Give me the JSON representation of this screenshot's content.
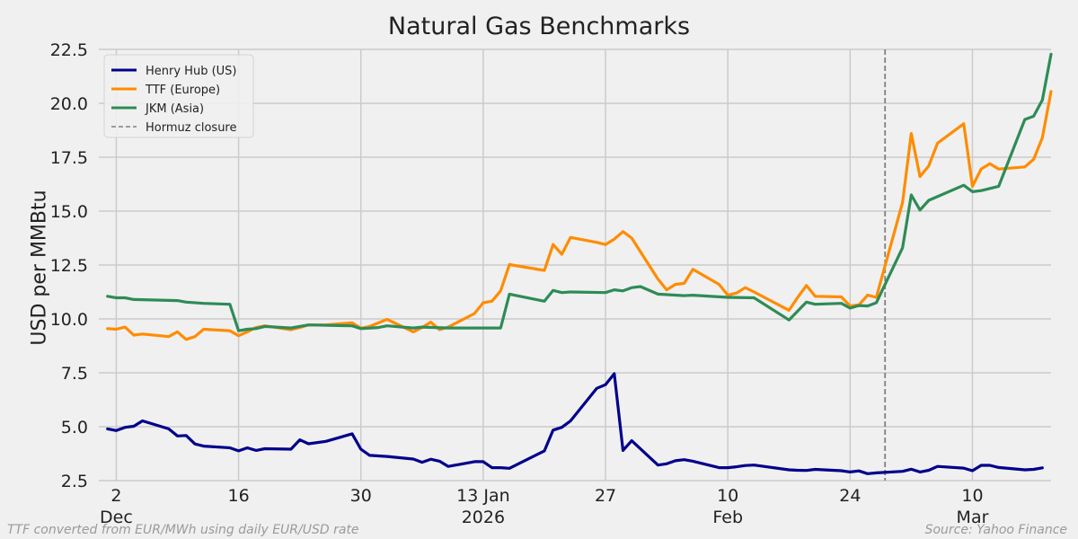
{
  "chart_data": {
    "type": "line",
    "title": "Natural Gas Benchmarks",
    "ylabel": "USD per MMBtu",
    "xlabel": "",
    "ylim": [
      2.5,
      22.5
    ],
    "y_ticks": [
      "2.5",
      "5.0",
      "7.5",
      "10.0",
      "12.5",
      "15.0",
      "17.5",
      "20.0",
      "22.5"
    ],
    "x_range": [
      "2025-11-30",
      "2026-03-19"
    ],
    "x_ticks": [
      {
        "date": "2025-12-02",
        "label": "2",
        "sublabel": "Dec"
      },
      {
        "date": "2025-12-16",
        "label": "16",
        "sublabel": ""
      },
      {
        "date": "2025-12-30",
        "label": "30",
        "sublabel": ""
      },
      {
        "date": "2026-01-13",
        "label": "13 Jan",
        "sublabel": "2026"
      },
      {
        "date": "2026-01-27",
        "label": "27",
        "sublabel": ""
      },
      {
        "date": "2026-02-10",
        "label": "10",
        "sublabel": "Feb"
      },
      {
        "date": "2026-02-24",
        "label": "24",
        "sublabel": ""
      },
      {
        "date": "2026-03-10",
        "label": "10",
        "sublabel": "Mar"
      }
    ],
    "grid": true,
    "legend_position": "top-left",
    "marker": {
      "date": "2026-02-28",
      "label": "Hormuz closure",
      "color": "#808080",
      "style": "dashed"
    },
    "series": [
      {
        "name": "Henry Hub (US)",
        "color": "#00008b",
        "points": [
          [
            "2025-12-01",
            4.9
          ],
          [
            "2025-12-02",
            4.82
          ],
          [
            "2025-12-03",
            4.97
          ],
          [
            "2025-12-04",
            5.02
          ],
          [
            "2025-12-05",
            5.27
          ],
          [
            "2025-12-08",
            4.9
          ],
          [
            "2025-12-09",
            4.57
          ],
          [
            "2025-12-10",
            4.59
          ],
          [
            "2025-12-11",
            4.2
          ],
          [
            "2025-12-12",
            4.1
          ],
          [
            "2025-12-15",
            4.02
          ],
          [
            "2025-12-16",
            3.88
          ],
          [
            "2025-12-17",
            4.02
          ],
          [
            "2025-12-18",
            3.9
          ],
          [
            "2025-12-19",
            3.98
          ],
          [
            "2025-12-22",
            3.96
          ],
          [
            "2025-12-23",
            4.39
          ],
          [
            "2025-12-24",
            4.21
          ],
          [
            "2025-12-26",
            4.32
          ],
          [
            "2025-12-29",
            4.67
          ],
          [
            "2025-12-30",
            3.96
          ],
          [
            "2025-12-31",
            3.67
          ],
          [
            "2026-01-02",
            3.62
          ],
          [
            "2026-01-05",
            3.5
          ],
          [
            "2026-01-06",
            3.35
          ],
          [
            "2026-01-07",
            3.49
          ],
          [
            "2026-01-08",
            3.4
          ],
          [
            "2026-01-09",
            3.16
          ],
          [
            "2026-01-12",
            3.38
          ],
          [
            "2026-01-13",
            3.38
          ],
          [
            "2026-01-14",
            3.1
          ],
          [
            "2026-01-15",
            3.1
          ],
          [
            "2026-01-16",
            3.07
          ],
          [
            "2026-01-20",
            3.88
          ],
          [
            "2026-01-21",
            4.84
          ],
          [
            "2026-01-22",
            4.97
          ],
          [
            "2026-01-23",
            5.27
          ],
          [
            "2026-01-26",
            6.78
          ],
          [
            "2026-01-27",
            6.95
          ],
          [
            "2026-01-28",
            7.46
          ],
          [
            "2026-01-29",
            3.9
          ],
          [
            "2026-01-30",
            4.35
          ],
          [
            "2026-02-02",
            3.22
          ],
          [
            "2026-02-03",
            3.28
          ],
          [
            "2026-02-04",
            3.42
          ],
          [
            "2026-02-05",
            3.47
          ],
          [
            "2026-02-06",
            3.4
          ],
          [
            "2026-02-09",
            3.1
          ],
          [
            "2026-02-10",
            3.1
          ],
          [
            "2026-02-11",
            3.14
          ],
          [
            "2026-02-12",
            3.2
          ],
          [
            "2026-02-13",
            3.22
          ],
          [
            "2026-02-17",
            3.0
          ],
          [
            "2026-02-18",
            2.98
          ],
          [
            "2026-02-19",
            2.97
          ],
          [
            "2026-02-20",
            3.02
          ],
          [
            "2026-02-23",
            2.96
          ],
          [
            "2026-02-24",
            2.9
          ],
          [
            "2026-02-25",
            2.95
          ],
          [
            "2026-02-26",
            2.82
          ],
          [
            "2026-02-27",
            2.86
          ],
          [
            "2026-03-02",
            2.93
          ],
          [
            "2026-03-03",
            3.03
          ],
          [
            "2026-03-04",
            2.9
          ],
          [
            "2026-03-05",
            2.98
          ],
          [
            "2026-03-06",
            3.16
          ],
          [
            "2026-03-09",
            3.08
          ],
          [
            "2026-03-10",
            2.96
          ],
          [
            "2026-03-11",
            3.21
          ],
          [
            "2026-03-12",
            3.21
          ],
          [
            "2026-03-13",
            3.11
          ],
          [
            "2026-03-16",
            3.0
          ],
          [
            "2026-03-17",
            3.02
          ],
          [
            "2026-03-18",
            3.09
          ]
        ]
      },
      {
        "name": "TTF (Europe)",
        "color": "#ff8c00",
        "points": [
          [
            "2025-12-01",
            9.55
          ],
          [
            "2025-12-02",
            9.52
          ],
          [
            "2025-12-03",
            9.62
          ],
          [
            "2025-12-04",
            9.25
          ],
          [
            "2025-12-05",
            9.3
          ],
          [
            "2025-12-08",
            9.18
          ],
          [
            "2025-12-09",
            9.4
          ],
          [
            "2025-12-10",
            9.05
          ],
          [
            "2025-12-11",
            9.18
          ],
          [
            "2025-12-12",
            9.52
          ],
          [
            "2025-12-15",
            9.45
          ],
          [
            "2025-12-16",
            9.22
          ],
          [
            "2025-12-17",
            9.4
          ],
          [
            "2025-12-18",
            9.6
          ],
          [
            "2025-12-19",
            9.68
          ],
          [
            "2025-12-22",
            9.5
          ],
          [
            "2025-12-23",
            9.6
          ],
          [
            "2025-12-24",
            9.72
          ],
          [
            "2025-12-26",
            9.72
          ],
          [
            "2025-12-29",
            9.82
          ],
          [
            "2025-12-30",
            9.57
          ],
          [
            "2025-12-31",
            9.65
          ],
          [
            "2026-01-02",
            9.98
          ],
          [
            "2026-01-05",
            9.4
          ],
          [
            "2026-01-06",
            9.6
          ],
          [
            "2026-01-07",
            9.85
          ],
          [
            "2026-01-08",
            9.5
          ],
          [
            "2026-01-09",
            9.62
          ],
          [
            "2026-01-12",
            10.25
          ],
          [
            "2026-01-13",
            10.75
          ],
          [
            "2026-01-14",
            10.82
          ],
          [
            "2026-01-15",
            11.3
          ],
          [
            "2026-01-16",
            12.52
          ],
          [
            "2026-01-20",
            12.25
          ],
          [
            "2026-01-21",
            13.45
          ],
          [
            "2026-01-22",
            13.0
          ],
          [
            "2026-01-23",
            13.78
          ],
          [
            "2026-01-26",
            13.55
          ],
          [
            "2026-01-27",
            13.45
          ],
          [
            "2026-01-28",
            13.7
          ],
          [
            "2026-01-29",
            14.05
          ],
          [
            "2026-01-30",
            13.75
          ],
          [
            "2026-02-02",
            11.85
          ],
          [
            "2026-02-03",
            11.35
          ],
          [
            "2026-02-04",
            11.6
          ],
          [
            "2026-02-05",
            11.65
          ],
          [
            "2026-02-06",
            12.3
          ],
          [
            "2026-02-09",
            11.6
          ],
          [
            "2026-02-10",
            11.1
          ],
          [
            "2026-02-11",
            11.2
          ],
          [
            "2026-02-12",
            11.45
          ],
          [
            "2026-02-13",
            11.25
          ],
          [
            "2026-02-17",
            10.4
          ],
          [
            "2026-02-18",
            11.0
          ],
          [
            "2026-02-19",
            11.55
          ],
          [
            "2026-02-20",
            11.05
          ],
          [
            "2026-02-23",
            11.02
          ],
          [
            "2026-02-24",
            10.6
          ],
          [
            "2026-02-25",
            10.65
          ],
          [
            "2026-02-26",
            11.1
          ],
          [
            "2026-02-27",
            11.0
          ],
          [
            "2026-03-02",
            15.4
          ],
          [
            "2026-03-03",
            18.6
          ],
          [
            "2026-03-04",
            16.6
          ],
          [
            "2026-03-05",
            17.1
          ],
          [
            "2026-03-06",
            18.15
          ],
          [
            "2026-03-09",
            19.05
          ],
          [
            "2026-03-10",
            16.15
          ],
          [
            "2026-03-11",
            16.95
          ],
          [
            "2026-03-12",
            17.2
          ],
          [
            "2026-03-13",
            16.95
          ],
          [
            "2026-03-16",
            17.05
          ],
          [
            "2026-03-17",
            17.4
          ],
          [
            "2026-03-18",
            18.4
          ],
          [
            "2026-03-19",
            20.55
          ]
        ]
      },
      {
        "name": "JKM (Asia)",
        "color": "#2e8b57",
        "points": [
          [
            "2025-12-01",
            11.05
          ],
          [
            "2025-12-02",
            10.98
          ],
          [
            "2025-12-03",
            10.98
          ],
          [
            "2025-12-04",
            10.9
          ],
          [
            "2025-12-09",
            10.85
          ],
          [
            "2025-12-10",
            10.78
          ],
          [
            "2025-12-12",
            10.72
          ],
          [
            "2025-12-15",
            10.68
          ],
          [
            "2025-12-16",
            9.45
          ],
          [
            "2025-12-17",
            9.52
          ],
          [
            "2025-12-18",
            9.55
          ],
          [
            "2025-12-19",
            9.65
          ],
          [
            "2025-12-22",
            9.58
          ],
          [
            "2025-12-24",
            9.72
          ],
          [
            "2025-12-29",
            9.68
          ],
          [
            "2025-12-30",
            9.55
          ],
          [
            "2026-01-01",
            9.6
          ],
          [
            "2026-01-02",
            9.68
          ],
          [
            "2026-01-05",
            9.58
          ],
          [
            "2026-01-06",
            9.62
          ],
          [
            "2026-01-09",
            9.58
          ],
          [
            "2026-01-15",
            9.58
          ],
          [
            "2026-01-16",
            11.15
          ],
          [
            "2026-01-20",
            10.82
          ],
          [
            "2026-01-21",
            11.32
          ],
          [
            "2026-01-22",
            11.22
          ],
          [
            "2026-01-23",
            11.25
          ],
          [
            "2026-01-27",
            11.22
          ],
          [
            "2026-01-28",
            11.35
          ],
          [
            "2026-01-29",
            11.3
          ],
          [
            "2026-01-30",
            11.45
          ],
          [
            "2026-01-31",
            11.5
          ],
          [
            "2026-02-02",
            11.15
          ],
          [
            "2026-02-05",
            11.08
          ],
          [
            "2026-02-06",
            11.1
          ],
          [
            "2026-02-10",
            11.0
          ],
          [
            "2026-02-13",
            10.98
          ],
          [
            "2026-02-17",
            9.95
          ],
          [
            "2026-02-19",
            10.78
          ],
          [
            "2026-02-20",
            10.68
          ],
          [
            "2026-02-23",
            10.72
          ],
          [
            "2026-02-24",
            10.5
          ],
          [
            "2026-02-25",
            10.62
          ],
          [
            "2026-02-26",
            10.6
          ],
          [
            "2026-02-27",
            10.75
          ],
          [
            "2026-03-02",
            13.3
          ],
          [
            "2026-03-03",
            15.75
          ],
          [
            "2026-03-04",
            15.05
          ],
          [
            "2026-03-05",
            15.5
          ],
          [
            "2026-03-09",
            16.2
          ],
          [
            "2026-03-10",
            15.9
          ],
          [
            "2026-03-11",
            15.95
          ],
          [
            "2026-03-13",
            16.15
          ],
          [
            "2026-03-16",
            19.25
          ],
          [
            "2026-03-17",
            19.4
          ],
          [
            "2026-03-18",
            20.15
          ],
          [
            "2026-03-19",
            22.28
          ]
        ]
      }
    ]
  },
  "footnotes": {
    "left": "TTF converted from EUR/MWh using daily EUR/USD rate",
    "right": "Source: Yahoo Finance"
  }
}
